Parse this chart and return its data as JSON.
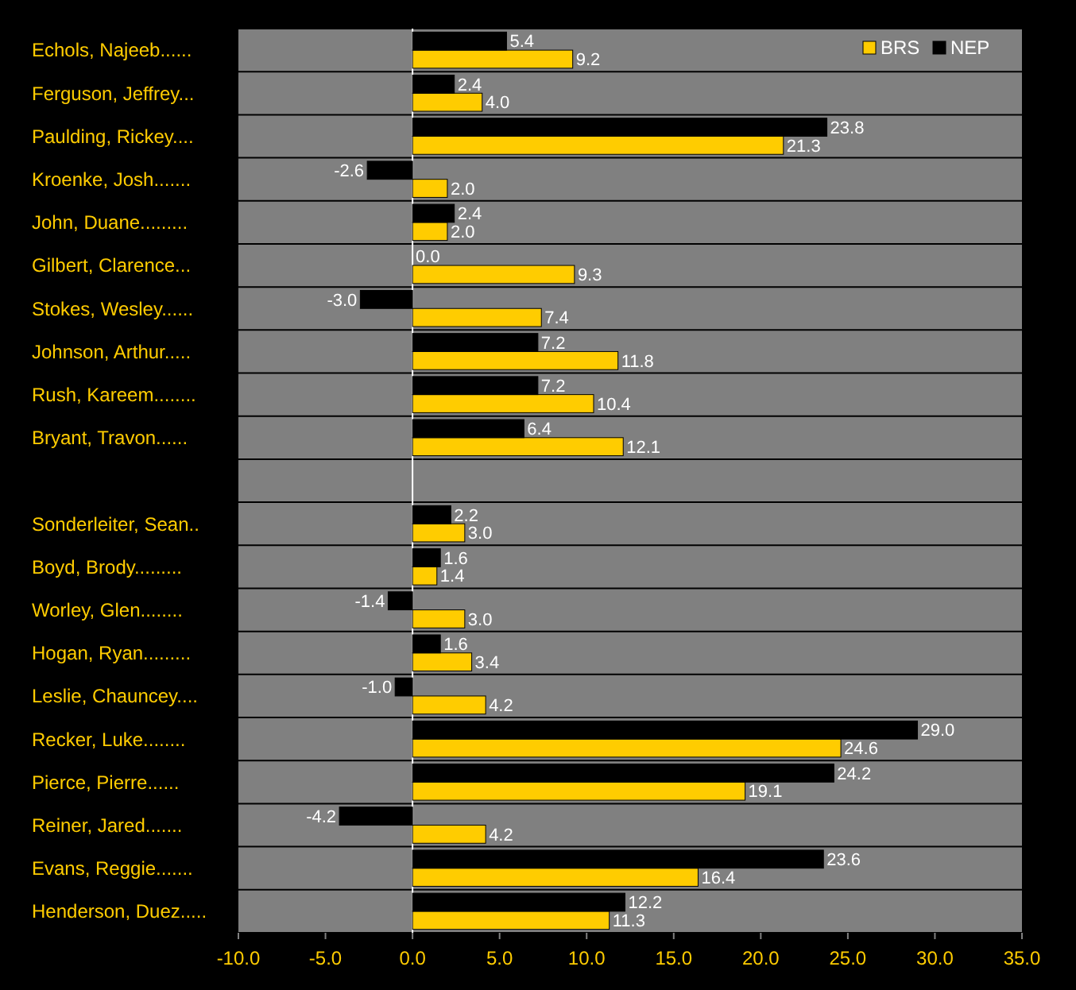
{
  "chart_data": {
    "type": "bar",
    "orientation": "horizontal",
    "categories": [
      "Echols, Najeeb......",
      "Ferguson, Jeffrey...",
      "Paulding, Rickey....",
      "Kroenke, Josh.......",
      "John, Duane.........",
      "Gilbert, Clarence...",
      "Stokes, Wesley......",
      "Johnson, Arthur.....",
      "Rush, Kareem........",
      "Bryant, Travon......",
      null,
      "Sonderleiter, Sean..",
      "Boyd, Brody.........",
      "Worley, Glen........",
      "Hogan, Ryan.........",
      "Leslie, Chauncey....",
      "Recker, Luke........",
      "Pierce, Pierre......",
      "Reiner, Jared.......",
      "Evans, Reggie.......",
      "Henderson, Duez....."
    ],
    "series": [
      {
        "name": "BRS",
        "color": "#ffcc00",
        "values": [
          9.2,
          4.0,
          21.3,
          2.0,
          2.0,
          9.3,
          7.4,
          11.8,
          10.4,
          12.1,
          null,
          3.0,
          1.4,
          3.0,
          3.4,
          4.2,
          24.6,
          19.1,
          4.2,
          16.4,
          11.3
        ],
        "value_labels": [
          "9.2",
          "4.0",
          "21.3",
          "2.0",
          "2.0",
          "9.3",
          "7.4",
          "11.8",
          "10.4",
          "12.1",
          null,
          "3.0",
          "1.4",
          "3.0",
          "3.4",
          "4.2",
          "24.6",
          "19.1",
          "4.2",
          "16.4",
          "11.3"
        ]
      },
      {
        "name": "NEP",
        "color": "#000000",
        "values": [
          5.4,
          2.4,
          23.8,
          -2.6,
          2.4,
          0.0,
          -3.0,
          7.2,
          7.2,
          6.4,
          null,
          2.2,
          1.6,
          -1.4,
          1.6,
          -1.0,
          29.0,
          24.2,
          -4.2,
          23.6,
          12.2
        ],
        "value_labels": [
          "5.4",
          "2.4",
          "23.8",
          "-2.6",
          "2.4",
          "0.0",
          "-3.0",
          "7.2",
          "7.2",
          "6.4",
          null,
          "2.2",
          "1.6",
          "-1.4",
          "1.6",
          "-1.0",
          "29.0",
          "24.2",
          "-4.2",
          "23.6",
          "12.2"
        ]
      }
    ],
    "xlim": [
      -10,
      35
    ],
    "xticks": [
      {
        "value": -10,
        "label": "-10.0"
      },
      {
        "value": -5,
        "label": "-5.0"
      },
      {
        "value": 0,
        "label": "0.0"
      },
      {
        "value": 5,
        "label": "5.0"
      },
      {
        "value": 10,
        "label": "10.0"
      },
      {
        "value": 15,
        "label": "15.0"
      },
      {
        "value": 20,
        "label": "20.0"
      },
      {
        "value": 25,
        "label": "25.0"
      },
      {
        "value": 30,
        "label": "30.0"
      },
      {
        "value": 35,
        "label": "35.0"
      }
    ],
    "grid": "y",
    "legend": "top right"
  }
}
